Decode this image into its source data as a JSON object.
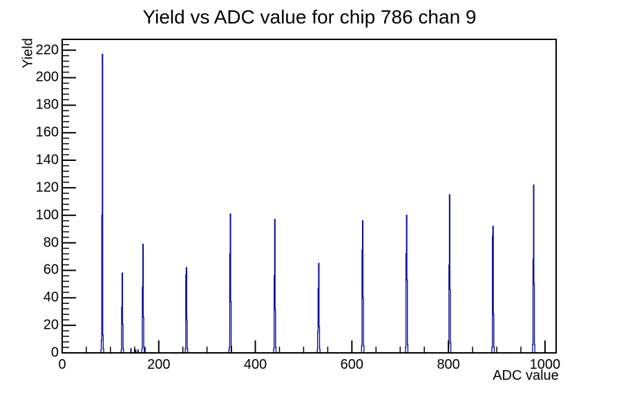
{
  "page": {
    "background": "#ffffff"
  },
  "chart_data": {
    "type": "bar",
    "subtype": "histogram-step",
    "title": "Yield vs ADC value for chip 786 chan 9",
    "xlabel": "ADC value",
    "ylabel": "Yield",
    "x_range": [
      0,
      1023
    ],
    "y_range": [
      0,
      227.85
    ],
    "x_major_ticks": [
      0,
      200,
      400,
      600,
      800,
      1000
    ],
    "x_minor_step": 50,
    "y_major_step": 20,
    "y_minor_step": 4,
    "grid": false,
    "legend": false,
    "line_color": "#10109a",
    "frame_color": "#000000",
    "bin_width_adc": 1,
    "peaks": [
      {
        "adc": 83,
        "yield": 217
      },
      {
        "adc": 124,
        "yield": 58
      },
      {
        "adc": 167,
        "yield": 79
      },
      {
        "adc": 257,
        "yield": 62
      },
      {
        "adc": 348,
        "yield": 101
      },
      {
        "adc": 440,
        "yield": 97
      },
      {
        "adc": 531,
        "yield": 65
      },
      {
        "adc": 622,
        "yield": 96
      },
      {
        "adc": 713,
        "yield": 100
      },
      {
        "adc": 802,
        "yield": 115
      },
      {
        "adc": 892,
        "yield": 92
      },
      {
        "adc": 976,
        "yield": 122
      }
    ],
    "bins": [
      [
        80,
        2
      ],
      [
        81,
        9
      ],
      [
        82,
        100
      ],
      [
        83,
        217
      ],
      [
        84,
        13
      ],
      [
        85,
        3
      ],
      [
        122,
        2
      ],
      [
        123,
        33
      ],
      [
        124,
        58
      ],
      [
        125,
        21
      ],
      [
        126,
        3
      ],
      [
        142,
        3
      ],
      [
        152,
        2
      ],
      [
        157,
        2
      ],
      [
        165,
        3
      ],
      [
        166,
        48
      ],
      [
        167,
        79
      ],
      [
        168,
        26
      ],
      [
        169,
        4
      ],
      [
        171,
        4
      ],
      [
        255,
        3
      ],
      [
        256,
        57
      ],
      [
        257,
        62
      ],
      [
        258,
        24
      ],
      [
        259,
        3
      ],
      [
        345,
        2
      ],
      [
        346,
        4
      ],
      [
        347,
        72
      ],
      [
        348,
        101
      ],
      [
        349,
        37
      ],
      [
        350,
        5
      ],
      [
        438,
        3
      ],
      [
        439,
        56
      ],
      [
        440,
        97
      ],
      [
        441,
        31
      ],
      [
        442,
        4
      ],
      [
        528,
        2
      ],
      [
        529,
        15
      ],
      [
        530,
        47
      ],
      [
        531,
        65
      ],
      [
        532,
        19
      ],
      [
        533,
        3
      ],
      [
        620,
        5
      ],
      [
        621,
        75
      ],
      [
        622,
        96
      ],
      [
        623,
        40
      ],
      [
        624,
        5
      ],
      [
        711,
        4
      ],
      [
        712,
        72
      ],
      [
        713,
        100
      ],
      [
        714,
        53
      ],
      [
        715,
        6
      ],
      [
        800,
        5
      ],
      [
        801,
        64
      ],
      [
        802,
        115
      ],
      [
        803,
        46
      ],
      [
        804,
        7
      ],
      [
        890,
        4
      ],
      [
        891,
        85
      ],
      [
        892,
        92
      ],
      [
        893,
        28
      ],
      [
        894,
        4
      ],
      [
        974,
        6
      ],
      [
        975,
        68
      ],
      [
        976,
        122
      ],
      [
        977,
        50
      ],
      [
        978,
        6
      ]
    ]
  }
}
